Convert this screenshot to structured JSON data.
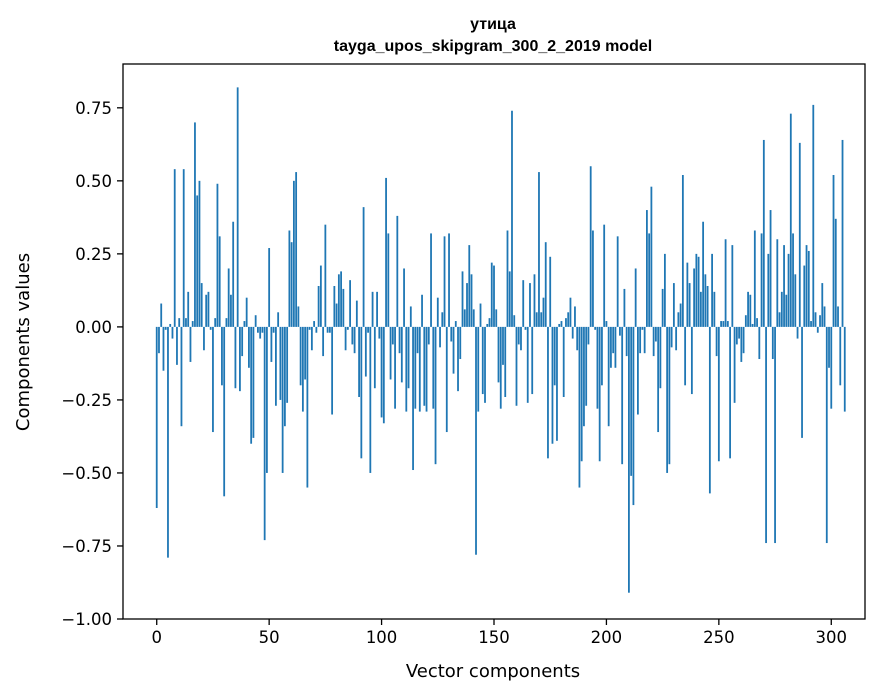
{
  "chart_data": {
    "type": "bar",
    "title": "утица",
    "subtitle": "tayga_upos_skipgram_300_2_2019 model",
    "xlabel": "Vector components",
    "ylabel": "Components values",
    "xlim": [
      -15,
      315
    ],
    "ylim": [
      -1.0,
      0.9
    ],
    "xticks": [
      0,
      50,
      100,
      150,
      200,
      250,
      300
    ],
    "xtick_labels": [
      "0",
      "50",
      "100",
      "150",
      "200",
      "250",
      "300"
    ],
    "yticks": [
      -1.0,
      -0.75,
      -0.5,
      -0.25,
      0.0,
      0.25,
      0.5,
      0.75
    ],
    "ytick_labels": [
      "−1.00",
      "−0.75",
      "−0.50",
      "−0.25",
      "0.00",
      "0.25",
      "0.50",
      "0.75"
    ],
    "grid": false,
    "bar_color": "#1f77b4",
    "values": [
      -0.62,
      -0.09,
      0.08,
      -0.15,
      -0.01,
      -0.79,
      0.01,
      -0.04,
      0.54,
      -0.13,
      0.03,
      -0.34,
      0.54,
      0.03,
      0.12,
      -0.12,
      0.02,
      0.7,
      0.45,
      0.5,
      0.15,
      -0.08,
      0.11,
      0.12,
      -0.01,
      -0.36,
      0.03,
      0.49,
      0.31,
      -0.2,
      -0.58,
      0.03,
      0.2,
      0.11,
      0.36,
      -0.21,
      0.82,
      -0.22,
      -0.1,
      0.02,
      0.1,
      -0.14,
      -0.4,
      -0.38,
      0.04,
      -0.02,
      -0.04,
      -0.02,
      -0.73,
      -0.5,
      0.27,
      -0.12,
      -0.02,
      -0.27,
      0.05,
      -0.25,
      -0.5,
      -0.34,
      -0.26,
      0.33,
      0.29,
      0.5,
      0.53,
      0.07,
      -0.2,
      -0.29,
      -0.18,
      -0.55,
      -0.01,
      -0.08,
      0.02,
      -0.02,
      0.14,
      0.21,
      -0.1,
      0.35,
      -0.02,
      -0.02,
      -0.3,
      0.14,
      0.08,
      0.18,
      0.19,
      0.13,
      -0.08,
      -0.01,
      0.16,
      -0.06,
      -0.09,
      0.09,
      -0.24,
      -0.45,
      0.41,
      -0.17,
      -0.02,
      -0.5,
      0.12,
      -0.21,
      0.12,
      -0.04,
      -0.31,
      -0.33,
      0.51,
      0.32,
      -0.18,
      -0.06,
      -0.28,
      0.38,
      -0.09,
      -0.19,
      0.2,
      -0.29,
      -0.21,
      0.07,
      -0.49,
      -0.28,
      -0.09,
      -0.29,
      0.11,
      -0.27,
      -0.29,
      -0.06,
      0.32,
      -0.28,
      -0.47,
      0.1,
      -0.07,
      0.05,
      0.31,
      -0.36,
      0.32,
      -0.05,
      -0.16,
      0.02,
      -0.22,
      -0.11,
      0.19,
      0.06,
      0.15,
      0.28,
      0.18,
      0.06,
      -0.78,
      -0.29,
      0.08,
      -0.23,
      -0.26,
      0.01,
      0.03,
      0.22,
      0.21,
      0.06,
      -0.19,
      -0.28,
      -0.13,
      -0.24,
      0.33,
      0.19,
      0.74,
      0.04,
      -0.27,
      -0.06,
      -0.08,
      0.16,
      -0.01,
      -0.26,
      0.15,
      -0.23,
      0.18,
      0.05,
      0.53,
      0.05,
      0.1,
      0.29,
      -0.45,
      0.24,
      -0.4,
      -0.2,
      -0.39,
      0.01,
      0.02,
      -0.24,
      0.03,
      0.05,
      0.1,
      -0.04,
      0.07,
      -0.08,
      -0.55,
      -0.46,
      -0.34,
      -0.27,
      -0.06,
      0.55,
      0.33,
      -0.01,
      -0.28,
      -0.46,
      -0.2,
      0.35,
      0.02,
      -0.34,
      -0.14,
      -0.09,
      -0.14,
      0.31,
      -0.03,
      -0.47,
      0.13,
      -0.1,
      -0.91,
      -0.51,
      -0.61,
      0.2,
      -0.3,
      -0.09,
      -0.01,
      -0.09,
      0.4,
      0.32,
      0.48,
      -0.1,
      -0.05,
      -0.36,
      -0.21,
      0.13,
      0.25,
      -0.5,
      -0.47,
      -0.07,
      0.15,
      -0.08,
      0.05,
      0.08,
      0.52,
      -0.2,
      0.22,
      0.15,
      -0.23,
      0.2,
      0.25,
      0.24,
      0.12,
      0.36,
      0.18,
      0.14,
      -0.57,
      0.25,
      0.12,
      -0.1,
      -0.46,
      0.02,
      0.02,
      0.3,
      0.02,
      -0.45,
      0.28,
      -0.26,
      -0.06,
      -0.04,
      -0.12,
      -0.09,
      0.04,
      0.12,
      0.11,
      0.01,
      0.33,
      0.03,
      -0.11,
      0.32,
      0.64,
      -0.74,
      0.25,
      0.4,
      -0.11,
      -0.74,
      0.3,
      0.05,
      0.12,
      0.28,
      0.11,
      0.25,
      0.73,
      0.32,
      0.18,
      -0.04,
      0.63,
      -0.38,
      0.21,
      0.28,
      0.26,
      0.02,
      0.76,
      0.05,
      -0.02,
      0.04,
      0.15,
      0.07,
      -0.74,
      -0.14,
      -0.28,
      0.52,
      0.37,
      0.07,
      -0.2,
      0.64,
      -0.29
    ]
  }
}
